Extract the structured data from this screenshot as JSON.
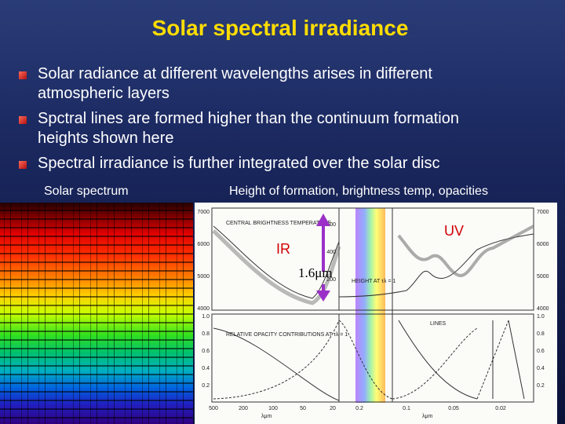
{
  "title": "Solar spectral irradiance",
  "bullets": [
    "Solar radiance at different wavelengths arises in different atmospheric layers",
    "Spctral lines are formed higher than the continuum formation heights shown here",
    "Spectral irradiance is further integrated over the solar disc"
  ],
  "captions": {
    "spectrum": "Solar spectrum",
    "figure": "Height of formation, brightness temp, opacities"
  },
  "annotations": {
    "uv": "UV",
    "ir": "IR",
    "wavelength": "1.6μm"
  },
  "figure": {
    "labels": {
      "brightness": "CENTRAL BRIGHTNESS TEMPERATURE",
      "opacity": "RELATIVE OPACITY CONTRIBUTIONS AT τλ = 1",
      "height": "HEIGHT AT τλ = 1",
      "lines": "LINES",
      "x_unit": "λμm"
    },
    "temp_ticks": [
      "7000",
      "6000",
      "5000",
      "4000"
    ],
    "height_ticks": [
      "600",
      "400",
      "200"
    ],
    "opacity_ticks": [
      "1.0",
      "0.8",
      "0.6",
      "0.4",
      "0.2"
    ],
    "x_ticks_left": [
      "500",
      "200",
      "100",
      "50",
      "20"
    ],
    "x_ticks_right": [
      "0.2",
      "0.1",
      "0.05",
      "0.02"
    ]
  }
}
